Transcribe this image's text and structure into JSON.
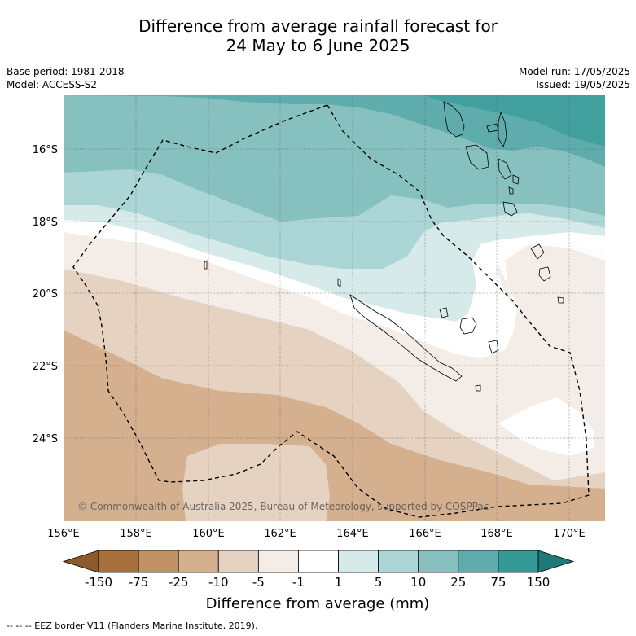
{
  "title_line1": "Difference from average rainfall forecast for",
  "title_line2": "24 May to 6 June 2025",
  "meta": {
    "base_period": "Base period: 1981-2018",
    "model": "Model: ACCESS-S2",
    "model_run": "Model run: 17/05/2025",
    "issued": "Issued: 19/05/2025"
  },
  "lon_ticks": [
    "156°E",
    "158°E",
    "160°E",
    "162°E",
    "164°E",
    "166°E",
    "168°E",
    "170°E"
  ],
  "lat_ticks": [
    "16°S",
    "18°S",
    "20°S",
    "22°S",
    "24°S"
  ],
  "copyright": "© Commonwealth of Australia 2025, Bureau of Meteorology, supported by COSPPac",
  "colorbar": {
    "title": "Difference from average (mm)",
    "labels": [
      "-150",
      "-75",
      "-25",
      "-10",
      "-5",
      "-1",
      "1",
      "5",
      "10",
      "25",
      "75",
      "150"
    ],
    "colors": [
      "#a8703a",
      "#bf9163",
      "#d4b08f",
      "#e6d2c0",
      "#f4ece6",
      "#ffffff",
      "#d6eae9",
      "#abd6d5",
      "#86c1c0",
      "#5eadac",
      "#339a97"
    ],
    "low_extend_color": "#8a5a2b",
    "high_extend_color": "#1e7a78"
  },
  "footer": "--  --  -- EEZ border V11 (Flanders Marine Institute, 2019)."
}
